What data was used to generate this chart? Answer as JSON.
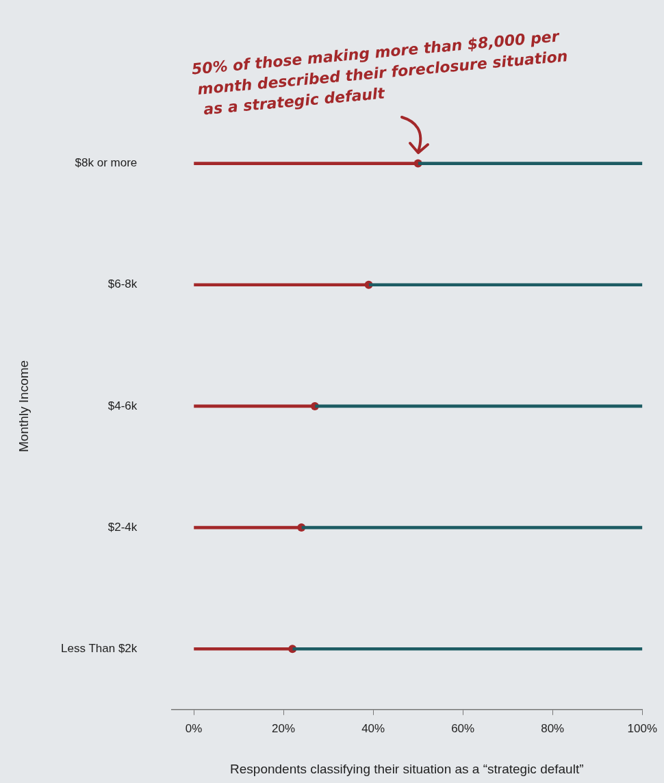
{
  "chart_data": {
    "type": "bar",
    "orientation": "horizontal",
    "stacked": true,
    "marker": "circle",
    "legend": false,
    "grid": false,
    "categories": [
      "$8k or more",
      "$6-8k",
      "$4-6k",
      "$2-4k",
      "Less Than $2k"
    ],
    "series": [
      {
        "color": "#a3282a",
        "values": [
          50,
          39,
          27,
          24,
          22
        ]
      },
      {
        "color": "#1d5c63",
        "values": [
          50,
          61,
          73,
          76,
          78
        ]
      },
      {
        "type": "scatter",
        "color": "#a3282a",
        "values": [
          50,
          39,
          27,
          24,
          22
        ]
      }
    ],
    "xlim": [
      -5,
      100
    ],
    "xticks": [
      {
        "value": 0,
        "label": "0%"
      },
      {
        "value": 20,
        "label": "20%"
      },
      {
        "value": 40,
        "label": "40%"
      },
      {
        "value": 60,
        "label": "60%"
      },
      {
        "value": 80,
        "label": "80%"
      },
      {
        "value": 100,
        "label": "100%"
      }
    ],
    "xlabel": "Respondents classifying their situation as a “strategic default”",
    "ylabel": "Monthly Income",
    "annotations": [
      {
        "text": "50% of those making more than $8,000 per month described their foreclosure situation as a strategic default",
        "x": 50,
        "y": "$8k or more"
      }
    ]
  }
}
